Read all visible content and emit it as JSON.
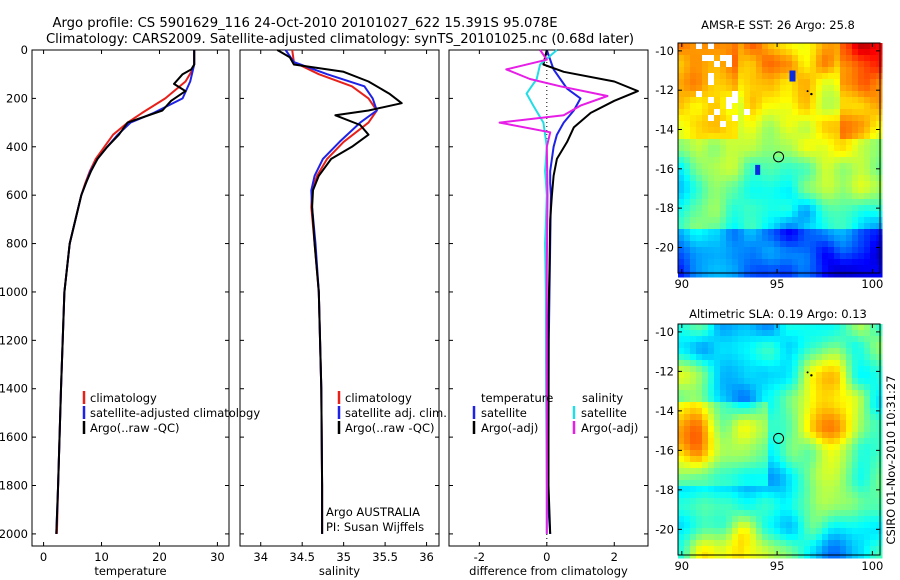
{
  "figure": {
    "title_line1": "Argo profile: CS 5901629_116 24-Oct-2010 20101027_622 15.391S 95.078E",
    "title_line2": "Climatology: CARS2009. Satellite-adjusted climatology: synTS_20101025.nc (0.68d later)",
    "side_label": "CSIRO 01-Nov-2010 10:31:27",
    "credit_line1": "Argo AUSTRALIA",
    "credit_line2": "PI: Susan Wijffels"
  },
  "colors": {
    "climatology": "#e8201a",
    "satellite": "#1e22e6",
    "argo": "#000000",
    "sat_salinity": "#22dde6",
    "argo_salinity": "#e61ee6"
  },
  "chart_data": [
    {
      "id": "temperature",
      "type": "line",
      "xlabel": "temperature",
      "xlim": [
        -2,
        32
      ],
      "ylim": [
        0,
        2050
      ],
      "y_reversed": true,
      "xticks": [
        0,
        10,
        20,
        30
      ],
      "yticks": [
        0,
        200,
        400,
        600,
        800,
        1000,
        1200,
        1400,
        1600,
        1800,
        2000
      ],
      "legend": [
        "climatology",
        "satellite-adjusted climatology",
        "Argo(..raw -QC)"
      ],
      "series": [
        {
          "name": "climatology",
          "color_key": "climatology",
          "x": [
            26.0,
            26.0,
            25.5,
            24.5,
            21.0,
            17.0,
            14.5,
            12.0,
            10.5,
            9.0,
            8.0,
            7.2,
            6.5,
            5.5,
            4.5,
            3.6,
            3.0,
            2.5,
            2.3
          ],
          "y": [
            0,
            60,
            90,
            130,
            200,
            260,
            300,
            350,
            400,
            450,
            500,
            550,
            600,
            700,
            800,
            1000,
            1400,
            1800,
            2000
          ]
        },
        {
          "name": "satellite-adjusted climatology",
          "color_key": "satellite",
          "x": [
            26.0,
            26.0,
            25.7,
            25.3,
            24.0,
            19.0,
            15.0,
            12.8,
            11.0,
            9.3,
            8.1,
            7.3,
            6.5,
            5.5,
            4.5,
            3.6,
            3.0,
            2.5,
            2.2
          ],
          "y": [
            0,
            60,
            90,
            130,
            200,
            260,
            300,
            350,
            400,
            450,
            500,
            550,
            600,
            700,
            800,
            1000,
            1400,
            1800,
            2000
          ]
        },
        {
          "name": "Argo(..raw -QC)",
          "color_key": "argo",
          "x": [
            26.0,
            26.0,
            25.5,
            24.0,
            22.5,
            24.5,
            22.0,
            20.5,
            14.5,
            13.0,
            11.0,
            9.3,
            8.2,
            7.3,
            6.5,
            5.5,
            4.5,
            3.6,
            3.0,
            2.5,
            2.2
          ],
          "y": [
            0,
            60,
            80,
            100,
            140,
            170,
            210,
            250,
            300,
            350,
            400,
            450,
            500,
            550,
            600,
            700,
            800,
            1000,
            1400,
            1800,
            2000
          ]
        }
      ]
    },
    {
      "id": "salinity",
      "type": "line",
      "xlabel": "salinity",
      "xlim": [
        33.75,
        36.15
      ],
      "ylim": [
        0,
        2050
      ],
      "y_reversed": true,
      "xticks": [
        34,
        34.5,
        35,
        35.5,
        36
      ],
      "xtick_labels": [
        "34",
        "34.5",
        "35",
        "35.5",
        "36"
      ],
      "yticks": [
        0,
        200,
        400,
        600,
        800,
        1000,
        1200,
        1400,
        1600,
        1800,
        2000
      ],
      "legend": [
        "climatology",
        "satellite adj. clim.",
        "Argo(..raw -QC)"
      ],
      "series": [
        {
          "name": "climatology",
          "color_key": "climatology",
          "x": [
            34.38,
            34.4,
            34.7,
            35.1,
            35.3,
            35.4,
            35.3,
            35.0,
            34.8,
            34.68,
            34.62,
            34.61,
            34.65,
            34.7,
            34.73,
            34.74,
            34.74
          ],
          "y": [
            0,
            50,
            100,
            150,
            200,
            250,
            300,
            380,
            450,
            520,
            580,
            650,
            800,
            1000,
            1400,
            1800,
            2000
          ]
        },
        {
          "name": "satellite adj. clim.",
          "color_key": "satellite",
          "x": [
            34.3,
            34.4,
            34.8,
            35.25,
            35.35,
            35.4,
            35.2,
            34.95,
            34.75,
            34.65,
            34.61,
            34.62,
            34.66,
            34.7,
            34.73,
            34.74,
            34.74
          ],
          "y": [
            0,
            50,
            100,
            150,
            200,
            250,
            300,
            380,
            450,
            520,
            580,
            650,
            800,
            1000,
            1400,
            1800,
            2000
          ]
        },
        {
          "name": "Argo(..raw -QC)",
          "color_key": "argo",
          "x": [
            34.2,
            34.35,
            34.4,
            35.0,
            35.3,
            35.55,
            35.7,
            35.3,
            34.9,
            35.2,
            35.3,
            35.1,
            34.85,
            34.7,
            34.63,
            34.62,
            34.65,
            34.7,
            34.73,
            34.74,
            34.74
          ],
          "y": [
            0,
            30,
            60,
            90,
            130,
            180,
            220,
            250,
            270,
            310,
            350,
            400,
            450,
            520,
            580,
            650,
            800,
            1000,
            1400,
            1800,
            2000
          ]
        }
      ]
    },
    {
      "id": "difference",
      "type": "line",
      "xlabel": "difference from climatology",
      "xlim": [
        -2.9,
        3.0
      ],
      "ylim": [
        0,
        2050
      ],
      "y_reversed": true,
      "xticks": [
        -2,
        0,
        2
      ],
      "yticks": [
        0,
        200,
        400,
        600,
        800,
        1000,
        1200,
        1400,
        1600,
        1800,
        2000
      ],
      "legend_temperature_title": "temperature",
      "legend_salinity_title": "salinity",
      "legend": [
        "satellite",
        "Argo(-adj)",
        "satellite",
        "Argo(-adj)"
      ],
      "series": [
        {
          "name": "temperature satellite",
          "color_key": "satellite",
          "x": [
            0.0,
            0.2,
            0.4,
            0.6,
            1.0,
            0.8,
            0.5,
            0.3,
            0.2,
            0.15,
            0.1,
            0.1,
            0.12,
            0.1,
            0.08,
            0.06,
            0.05,
            0.05,
            0.1
          ],
          "y": [
            0,
            80,
            120,
            160,
            200,
            250,
            300,
            350,
            400,
            450,
            500,
            550,
            600,
            800,
            1000,
            1200,
            1600,
            1900,
            2000
          ]
        },
        {
          "name": "temperature Argo(-adj)",
          "color_key": "argo",
          "x": [
            0.0,
            -0.1,
            0.5,
            2.0,
            2.7,
            2.0,
            1.3,
            0.8,
            0.6,
            0.3,
            0.2,
            0.15,
            0.1,
            0.08,
            0.05,
            0.05,
            0.05,
            0.1
          ],
          "y": [
            0,
            60,
            90,
            130,
            170,
            210,
            260,
            320,
            380,
            450,
            520,
            600,
            700,
            900,
            1100,
            1400,
            1800,
            2000
          ]
        },
        {
          "name": "salinity satellite",
          "color_key": "sat_salinity",
          "x": [
            0.3,
            -0.2,
            -0.3,
            -0.6,
            -0.4,
            -0.1,
            0.0,
            -0.05,
            0.0,
            -0.05,
            -0.03,
            -0.02,
            0.0,
            0.0
          ],
          "y": [
            0,
            60,
            120,
            180,
            230,
            300,
            400,
            500,
            600,
            800,
            1000,
            1400,
            1800,
            2000
          ]
        },
        {
          "name": "salinity Argo(-adj)",
          "color_key": "argo_salinity",
          "x": [
            -0.2,
            0.0,
            -1.2,
            -0.5,
            0.4,
            1.8,
            1.0,
            0.5,
            -1.4,
            0.1,
            0.0,
            0.02,
            0.0,
            0.0,
            0.0
          ],
          "y": [
            0,
            40,
            80,
            120,
            150,
            190,
            230,
            270,
            300,
            340,
            400,
            600,
            900,
            1400,
            2000
          ]
        }
      ]
    },
    {
      "id": "sst_map",
      "type": "heatmap",
      "title": "AMSR-E SST: 26 Argo: 25.8",
      "xlim": [
        89.8,
        100.4
      ],
      "ylim": [
        -21.3,
        -9.6
      ],
      "xticks": [
        90,
        95,
        100
      ],
      "yticks": [
        -10,
        -12,
        -14,
        -16,
        -18,
        -20
      ],
      "float_position": {
        "lon": 95.078,
        "lat": -15.391
      }
    },
    {
      "id": "sla_map",
      "type": "heatmap",
      "title": "Altimetric SLA: 0.19 Argo: 0.13",
      "xlim": [
        89.8,
        100.4
      ],
      "ylim": [
        -21.3,
        -9.6
      ],
      "xticks": [
        90,
        95,
        100
      ],
      "yticks": [
        -10,
        -12,
        -14,
        -16,
        -18,
        -20
      ],
      "float_position": {
        "lon": 95.078,
        "lat": -15.391
      }
    }
  ]
}
